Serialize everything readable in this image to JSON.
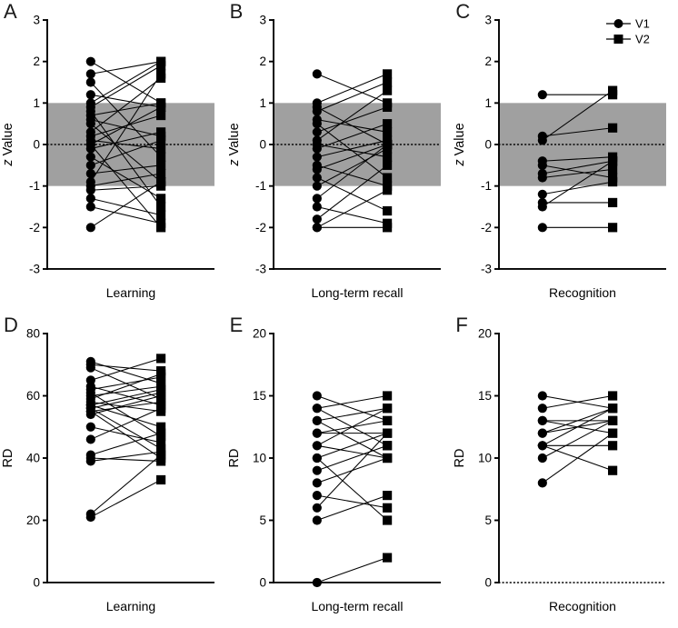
{
  "figure": {
    "background": "#ffffff",
    "band_color": "#a0a0a0",
    "marker_color": "#000000",
    "legend": {
      "position": "top-right-panel-C",
      "items": [
        {
          "marker": "circle",
          "label": "V1"
        },
        {
          "marker": "square",
          "label": "V2"
        }
      ]
    }
  },
  "chart_data": [
    {
      "id": "A",
      "panel_letter": "A",
      "type": "scatter",
      "xlabel": "Learning",
      "ylabel": "z Value",
      "ylabel_italic_first": true,
      "ylim": [
        -3,
        3
      ],
      "yticks": [
        -3,
        -2,
        -1,
        0,
        1,
        2,
        3
      ],
      "band": [
        -1,
        1
      ],
      "zero_line_dotted": true,
      "baseline_dotted": false,
      "show_legend": false,
      "paired": true,
      "series": [
        {
          "name": "V1",
          "marker": "circle",
          "values": [
            2.0,
            1.7,
            1.5,
            1.2,
            1.0,
            0.9,
            0.8,
            0.7,
            0.6,
            0.5,
            0.3,
            0.2,
            0.1,
            0.0,
            0.0,
            -0.1,
            -0.3,
            -0.5,
            -0.7,
            -0.9,
            -1.0,
            -1.1,
            -1.3,
            -1.5,
            -2.0
          ]
        },
        {
          "name": "V2",
          "marker": "square",
          "values": [
            1.0,
            2.0,
            -0.3,
            0.9,
            2.0,
            1.9,
            -1.5,
            1.0,
            0.2,
            -0.9,
            1.6,
            0.7,
            -0.1,
            0.9,
            -2.0,
            0.3,
            -1.3,
            0.1,
            -0.5,
            1.7,
            -0.7,
            -1.0,
            -1.7,
            -1.9,
            -0.9
          ]
        }
      ]
    },
    {
      "id": "B",
      "panel_letter": "B",
      "type": "scatter",
      "xlabel": "Long-term recall",
      "ylabel": "z Value",
      "ylabel_italic_first": true,
      "ylim": [
        -3,
        3
      ],
      "yticks": [
        -3,
        -2,
        -1,
        0,
        1,
        2,
        3
      ],
      "band": [
        -1,
        1
      ],
      "zero_line_dotted": true,
      "baseline_dotted": false,
      "show_legend": false,
      "paired": true,
      "series": [
        {
          "name": "V1",
          "marker": "circle",
          "values": [
            1.7,
            1.0,
            0.9,
            0.8,
            0.6,
            0.5,
            0.3,
            0.1,
            0.0,
            -0.1,
            -0.3,
            -0.5,
            -0.6,
            -0.8,
            -1.0,
            -1.3,
            -1.5,
            -1.8,
            -2.0,
            -2.0
          ]
        },
        {
          "name": "V2",
          "marker": "square",
          "values": [
            1.0,
            1.7,
            0.0,
            1.5,
            0.3,
            -0.8,
            0.9,
            1.3,
            -0.3,
            0.5,
            0.1,
            -1.0,
            0.0,
            -1.6,
            -0.1,
            0.0,
            -1.9,
            -0.5,
            -1.1,
            -2.0
          ]
        }
      ]
    },
    {
      "id": "C",
      "panel_letter": "C",
      "type": "scatter",
      "xlabel": "Recognition",
      "ylabel": "z Value",
      "ylabel_italic_first": true,
      "ylim": [
        -3,
        3
      ],
      "yticks": [
        -3,
        -2,
        -1,
        0,
        1,
        2,
        3
      ],
      "band": [
        -1,
        1
      ],
      "zero_line_dotted": true,
      "baseline_dotted": false,
      "show_legend": true,
      "paired": true,
      "series": [
        {
          "name": "V1",
          "marker": "circle",
          "values": [
            1.2,
            0.2,
            0.1,
            -0.4,
            -0.5,
            -0.7,
            -0.8,
            -1.2,
            -1.4,
            -1.5,
            -2.0
          ]
        },
        {
          "name": "V2",
          "marker": "square",
          "values": [
            1.2,
            0.4,
            1.3,
            -0.3,
            -0.8,
            -0.4,
            -0.6,
            -0.9,
            -1.4,
            -0.4,
            -2.0
          ]
        }
      ]
    },
    {
      "id": "D",
      "panel_letter": "D",
      "type": "scatter",
      "xlabel": "Learning",
      "ylabel": "RD",
      "ylabel_italic_first": false,
      "ylim": [
        0,
        80
      ],
      "yticks": [
        0,
        20,
        40,
        60,
        80
      ],
      "band": null,
      "zero_line_dotted": false,
      "baseline_dotted": false,
      "show_legend": false,
      "paired": true,
      "series": [
        {
          "name": "V1",
          "marker": "circle",
          "values": [
            71,
            70,
            69,
            65,
            63,
            62,
            61,
            60,
            59,
            58,
            57,
            57,
            56,
            56,
            55,
            55,
            54,
            50,
            46,
            41,
            40,
            39,
            22,
            21
          ]
        },
        {
          "name": "V2",
          "marker": "square",
          "values": [
            64,
            68,
            59,
            72,
            57,
            66,
            47,
            63,
            67,
            55,
            62,
            50,
            61,
            43,
            58,
            40,
            60,
            45,
            56,
            48,
            39,
            42,
            41,
            33
          ]
        }
      ]
    },
    {
      "id": "E",
      "panel_letter": "E",
      "type": "scatter",
      "xlabel": "Long-term recall",
      "ylabel": "RD",
      "ylabel_italic_first": false,
      "ylim": [
        0,
        20
      ],
      "yticks": [
        0,
        5,
        10,
        15,
        20
      ],
      "band": null,
      "zero_line_dotted": false,
      "baseline_dotted": false,
      "show_legend": false,
      "paired": true,
      "series": [
        {
          "name": "V1",
          "marker": "circle",
          "values": [
            15,
            14,
            14,
            13,
            13,
            12,
            12,
            11,
            11,
            10,
            10,
            9,
            8,
            7,
            6,
            5,
            0
          ]
        },
        {
          "name": "V2",
          "marker": "square",
          "values": [
            13,
            15,
            11,
            14,
            10,
            13,
            12,
            14,
            10,
            12,
            5,
            11,
            10,
            6,
            12,
            7,
            2
          ]
        }
      ]
    },
    {
      "id": "F",
      "panel_letter": "F",
      "type": "scatter",
      "xlabel": "Recognition",
      "ylabel": "RD",
      "ylabel_italic_first": false,
      "ylim": [
        0,
        20
      ],
      "yticks": [
        0,
        5,
        10,
        15,
        20
      ],
      "band": null,
      "zero_line_dotted": false,
      "baseline_dotted": true,
      "show_legend": false,
      "paired": true,
      "series": [
        {
          "name": "V1",
          "marker": "circle",
          "values": [
            15,
            14,
            13,
            13,
            12,
            12,
            11,
            11,
            11,
            10,
            8
          ]
        },
        {
          "name": "V2",
          "marker": "square",
          "values": [
            14,
            15,
            13,
            12,
            14,
            13,
            14,
            11,
            9,
            13,
            12
          ]
        }
      ]
    }
  ]
}
